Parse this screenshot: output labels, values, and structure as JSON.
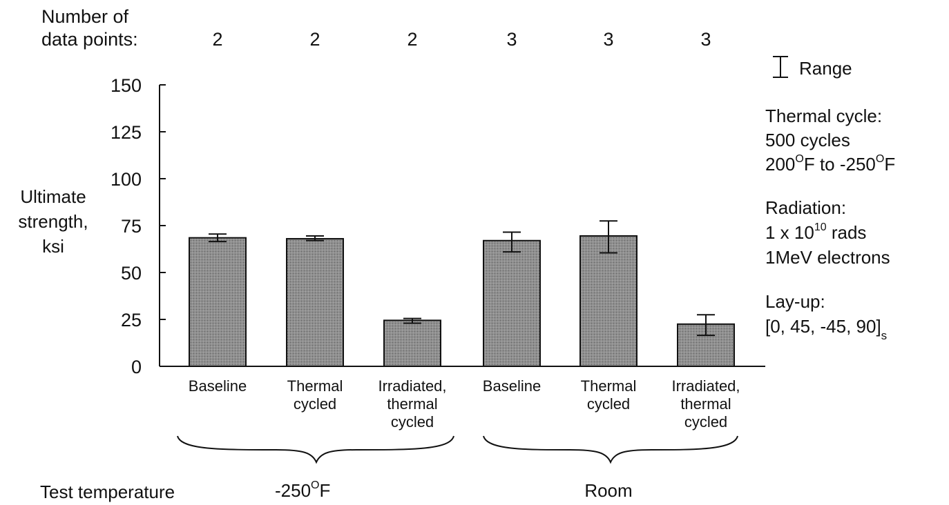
{
  "points_header": [
    "Number of",
    "data points:"
  ],
  "points_counts": [
    "2",
    "2",
    "2",
    "3",
    "3",
    "3"
  ],
  "chart_data": {
    "type": "bar",
    "ylabel": [
      "Ultimate",
      "strength,",
      "ksi"
    ],
    "ylim": [
      0,
      150
    ],
    "yticks": [
      0,
      25,
      50,
      75,
      100,
      125,
      150
    ],
    "categories": [
      [
        "Baseline"
      ],
      [
        "Thermal",
        "cycled"
      ],
      [
        "Irradiated,",
        "thermal",
        "cycled"
      ],
      [
        "Baseline"
      ],
      [
        "Thermal",
        "cycled"
      ],
      [
        "Irradiated,",
        "thermal",
        "cycled"
      ]
    ],
    "values": [
      68.5,
      68,
      24.5,
      67,
      69.5,
      22.5
    ],
    "ranges": [
      [
        66.5,
        70.5
      ],
      [
        67,
        69.5
      ],
      [
        23,
        25.5
      ],
      [
        61,
        71.5
      ],
      [
        60.5,
        77.5
      ],
      [
        16.5,
        27.5
      ]
    ],
    "bar_color": "#8f8f8f",
    "groups": [
      {
        "label": "-250",
        "unit": "F",
        "degree": "O",
        "categories": [
          0,
          1,
          2
        ]
      },
      {
        "label": "Room",
        "categories": [
          3,
          4,
          5
        ]
      }
    ],
    "grid": false
  },
  "group_axis_label": "Test temperature",
  "legend": {
    "range_label": "Range",
    "thermal_title": "Thermal cycle:",
    "thermal_line1": "500 cycles",
    "thermal_line2": {
      "a": "200",
      "deg": "O",
      "b": "F to -250",
      "deg2": "O",
      "c": "F"
    },
    "radiation_title": "Radiation:",
    "radiation_line1": {
      "a": "1 x 10",
      "exp": "10",
      "b": " rads"
    },
    "radiation_line2": "1MeV electrons",
    "layup_title": "Lay-up:",
    "layup_line1": {
      "a": "[0, 45, -45, 90]",
      "sub": "s"
    }
  }
}
